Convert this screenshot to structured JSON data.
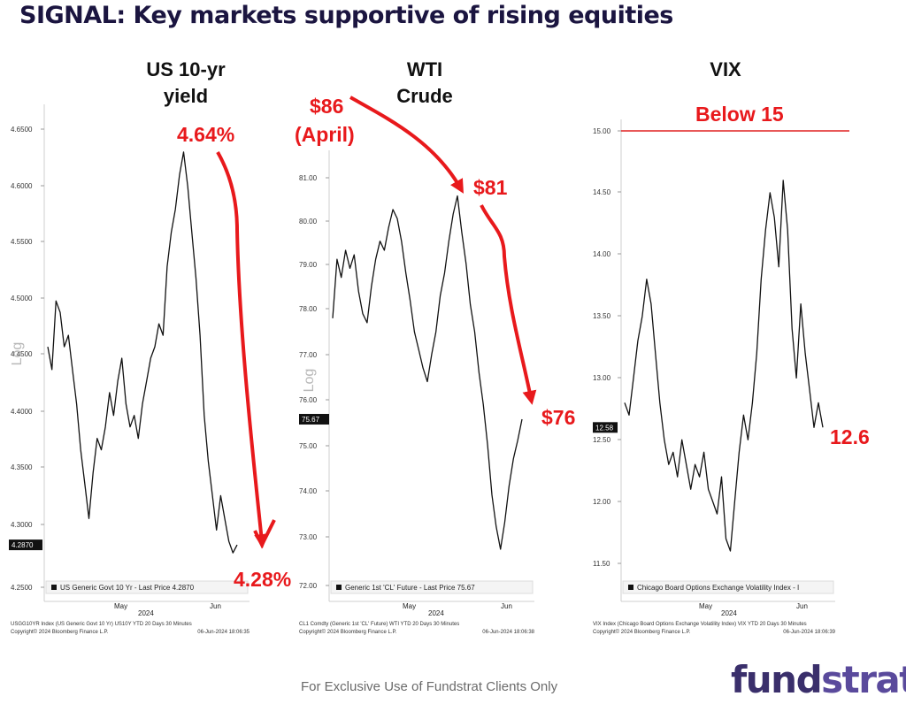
{
  "title": "SIGNAL: Key markets supportive of rising equities",
  "footer": "For Exclusive Use of Fundstrat Clients Only",
  "logo": {
    "main": "fund",
    "tail": "strat"
  },
  "chart_data": [
    {
      "type": "line",
      "panel_title_lines": [
        "US 10-yr",
        "yield"
      ],
      "ylabel": "Log",
      "ylim": [
        4.245,
        4.655
      ],
      "y_ticks": [
        "4.6500",
        "4.6000",
        "4.5500",
        "4.5000",
        "4.4500",
        "4.4000",
        "4.3500",
        "4.3000",
        "4.2500"
      ],
      "y_tick_values": [
        4.65,
        4.6,
        4.55,
        4.5,
        4.45,
        4.4,
        4.35,
        4.3,
        4.25
      ],
      "x_ticks": [
        "May",
        "Jun"
      ],
      "x_year": "2024",
      "legend": "US Generic Govt 10 Yr - Last Price 4.2870",
      "last_price": "4.2870",
      "source_lines": [
        "USGG10YR Index (US Generic Govt 10 Yr) US10Y YTD 20 Days 30 Minutes",
        "Copyright© 2024 Bloomberg Finance L.P."
      ],
      "timestamp": "06-Jun-2024 18:06:35",
      "annotations": [
        "4.64%",
        "4.28%"
      ],
      "series": [
        {
          "color": "#111111",
          "values": [
            4.46,
            4.44,
            4.5,
            4.49,
            4.46,
            4.47,
            4.44,
            4.41,
            4.37,
            4.34,
            4.31,
            4.35,
            4.38,
            4.37,
            4.39,
            4.42,
            4.4,
            4.43,
            4.45,
            4.41,
            4.39,
            4.4,
            4.38,
            4.41,
            4.43,
            4.45,
            4.46,
            4.48,
            4.47,
            4.53,
            4.56,
            4.58,
            4.61,
            4.63,
            4.6,
            4.56,
            4.52,
            4.47,
            4.4,
            4.36,
            4.33,
            4.3,
            4.33,
            4.31,
            4.29,
            4.28,
            4.287
          ]
        }
      ]
    },
    {
      "type": "line",
      "panel_title_lines": [
        "WTI",
        "Crude"
      ],
      "ylabel": "Log",
      "ylim": [
        71.9,
        81.5
      ],
      "y_ticks": [
        "81.00",
        "80.00",
        "79.00",
        "78.00",
        "77.00",
        "76.00",
        "75.00",
        "74.00",
        "73.00",
        "72.00"
      ],
      "y_tick_values": [
        81,
        80,
        79,
        78,
        77,
        76,
        75,
        74,
        73,
        72
      ],
      "x_ticks": [
        "May",
        "Jun"
      ],
      "x_year": "2024",
      "legend": "Generic 1st 'CL' Future - Last Price 75.67",
      "last_price": "75.67",
      "source_lines": [
        "CL1 Comdty (Generic 1st 'CL' Future) WTI YTD 20 Days 30 Minutes",
        "Copyright© 2024 Bloomberg Finance L.P."
      ],
      "timestamp": "06-Jun-2024 18:06:38",
      "annotations": [
        "$86",
        "(April)",
        "$81",
        "$76"
      ],
      "series": [
        {
          "color": "#111111",
          "values": [
            77.9,
            79.2,
            78.8,
            79.4,
            79.0,
            79.3,
            78.5,
            78.0,
            77.8,
            78.6,
            79.2,
            79.6,
            79.4,
            79.9,
            80.3,
            80.1,
            79.6,
            78.9,
            78.3,
            77.6,
            77.2,
            76.8,
            76.5,
            77.1,
            77.6,
            78.4,
            78.9,
            79.6,
            80.2,
            80.6,
            79.8,
            79.1,
            78.2,
            77.6,
            76.7,
            76.0,
            75.1,
            74.0,
            73.3,
            72.8,
            73.4,
            74.2,
            74.8,
            75.2,
            75.67
          ]
        }
      ]
    },
    {
      "type": "line",
      "panel_title_lines": [
        "VIX"
      ],
      "ylim": [
        11.35,
        15.15
      ],
      "y_ticks": [
        "15.00",
        "14.50",
        "14.00",
        "13.50",
        "13.00",
        "12.50",
        "12.00",
        "11.50"
      ],
      "y_tick_values": [
        15,
        14.5,
        14,
        13.5,
        13,
        12.5,
        12,
        11.5
      ],
      "x_ticks": [
        "May",
        "Jun"
      ],
      "x_year": "2024",
      "legend": "Chicago Board Options Exchange Volatility Index - I",
      "last_price": "12.58",
      "source_lines": [
        "VIX Index (Chicago Board Options Exchange Volatility Index) VIX YTD 20 Days 30 Minutes",
        "Copyright© 2024 Bloomberg Finance L.P."
      ],
      "timestamp": "06-Jun-2024 18:06:39",
      "annotations": [
        "Below 15",
        "12.6"
      ],
      "reference_line": {
        "value": 15.0,
        "color": "#e02020"
      },
      "series": [
        {
          "color": "#111111",
          "values": [
            12.8,
            12.7,
            13.0,
            13.3,
            13.5,
            13.8,
            13.6,
            13.2,
            12.8,
            12.5,
            12.3,
            12.4,
            12.2,
            12.5,
            12.3,
            12.1,
            12.3,
            12.2,
            12.4,
            12.1,
            12.0,
            11.9,
            12.2,
            11.7,
            11.6,
            12.0,
            12.4,
            12.7,
            12.5,
            12.8,
            13.2,
            13.8,
            14.2,
            14.5,
            14.3,
            13.9,
            14.6,
            14.2,
            13.4,
            13.0,
            13.6,
            13.2,
            12.9,
            12.6,
            12.8,
            12.6
          ]
        }
      ]
    }
  ]
}
